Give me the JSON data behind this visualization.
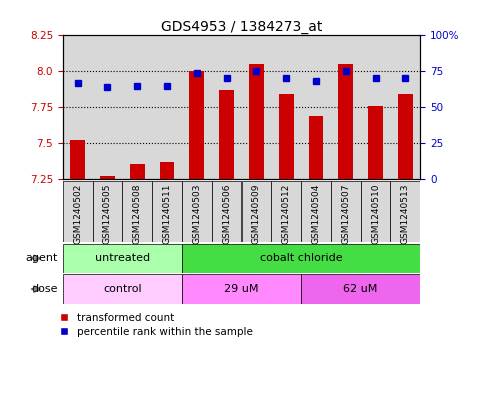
{
  "title": "GDS4953 / 1384273_at",
  "samples": [
    "GSM1240502",
    "GSM1240505",
    "GSM1240508",
    "GSM1240511",
    "GSM1240503",
    "GSM1240506",
    "GSM1240509",
    "GSM1240512",
    "GSM1240504",
    "GSM1240507",
    "GSM1240510",
    "GSM1240513"
  ],
  "transformed_counts": [
    7.52,
    7.27,
    7.35,
    7.37,
    8.0,
    7.87,
    8.05,
    7.84,
    7.69,
    8.05,
    7.76,
    7.84
  ],
  "percentile_ranks": [
    67,
    64,
    65,
    65,
    74,
    70,
    75,
    70,
    68,
    75,
    70,
    70
  ],
  "bar_color": "#cc0000",
  "dot_color": "#0000cc",
  "ylim_left": [
    7.25,
    8.25
  ],
  "ylim_right": [
    0,
    100
  ],
  "yticks_left": [
    7.25,
    7.5,
    7.75,
    8.0,
    8.25
  ],
  "yticks_right": [
    0,
    25,
    50,
    75,
    100
  ],
  "ytick_labels_right": [
    "0",
    "25",
    "50",
    "75",
    "100%"
  ],
  "dotted_lines": [
    7.5,
    7.75,
    8.0
  ],
  "agent_labels": [
    {
      "label": "untreated",
      "start": 0,
      "end": 4,
      "color": "#aaffaa"
    },
    {
      "label": "cobalt chloride",
      "start": 4,
      "end": 12,
      "color": "#44dd44"
    }
  ],
  "dose_labels": [
    {
      "label": "control",
      "start": 0,
      "end": 4,
      "color": "#ffccff"
    },
    {
      "label": "29 uM",
      "start": 4,
      "end": 8,
      "color": "#ff88ff"
    },
    {
      "label": "62 uM",
      "start": 8,
      "end": 12,
      "color": "#ee66ee"
    }
  ],
  "legend_red_label": "transformed count",
  "legend_blue_label": "percentile rank within the sample",
  "agent_row_label": "agent",
  "dose_row_label": "dose",
  "background_color": "#ffffff",
  "bar_width": 0.5,
  "title_fontsize": 10,
  "tick_fontsize": 7.5,
  "col_bg_color": "#d8d8d8"
}
